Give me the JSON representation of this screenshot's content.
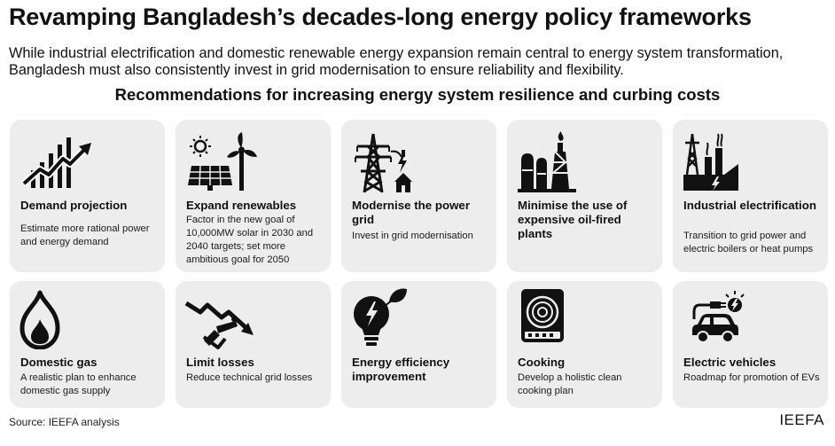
{
  "title": "Revamping Bangladesh’s decades-long energy policy frameworks",
  "subtitle": "While industrial electrification and domestic renewable energy expansion remain central to energy system transformation, Bangladesh must also consistently invest in grid modernisation to ensure reliability and flexibility.",
  "heading": "Recommendations for increasing energy system resilience and curbing costs",
  "cards": [
    {
      "title": "Demand projection",
      "desc": "Estimate more rational power and energy demand",
      "icon": "growth-chart-icon"
    },
    {
      "title": "Expand renewables",
      "desc": "Factor in the new goal of 10,000MW solar in 2030 and 2040 targets; set more ambitious goal for 2050",
      "icon": "solar-wind-icon"
    },
    {
      "title": "Modernise the power grid",
      "desc": "Invest in grid modernisation",
      "icon": "transmission-tower-icon"
    },
    {
      "title": "Minimise the use of expensive oil-fired plants",
      "desc": "",
      "icon": "oil-plant-icon"
    },
    {
      "title": "Industrial electrification",
      "desc": "Transition to grid power and electric boilers or heat pumps",
      "icon": "factory-icon"
    },
    {
      "title": "Domestic gas",
      "desc": "A realistic plan to enhance domestic gas supply",
      "icon": "gas-flame-icon"
    },
    {
      "title": "Limit losses",
      "desc": "Reduce technical grid losses",
      "icon": "cut-wire-icon"
    },
    {
      "title": "Energy efficiency improvement",
      "desc": "",
      "icon": "eco-bulb-icon"
    },
    {
      "title": "Cooking",
      "desc": "Develop a holistic clean cooking plan",
      "icon": "induction-cooktop-icon"
    },
    {
      "title": "Electric vehicles",
      "desc": "Roadmap for promotion of EVs",
      "icon": "electric-car-icon"
    }
  ],
  "source": "Source: IEEFA analysis",
  "brand": "IEEFA"
}
